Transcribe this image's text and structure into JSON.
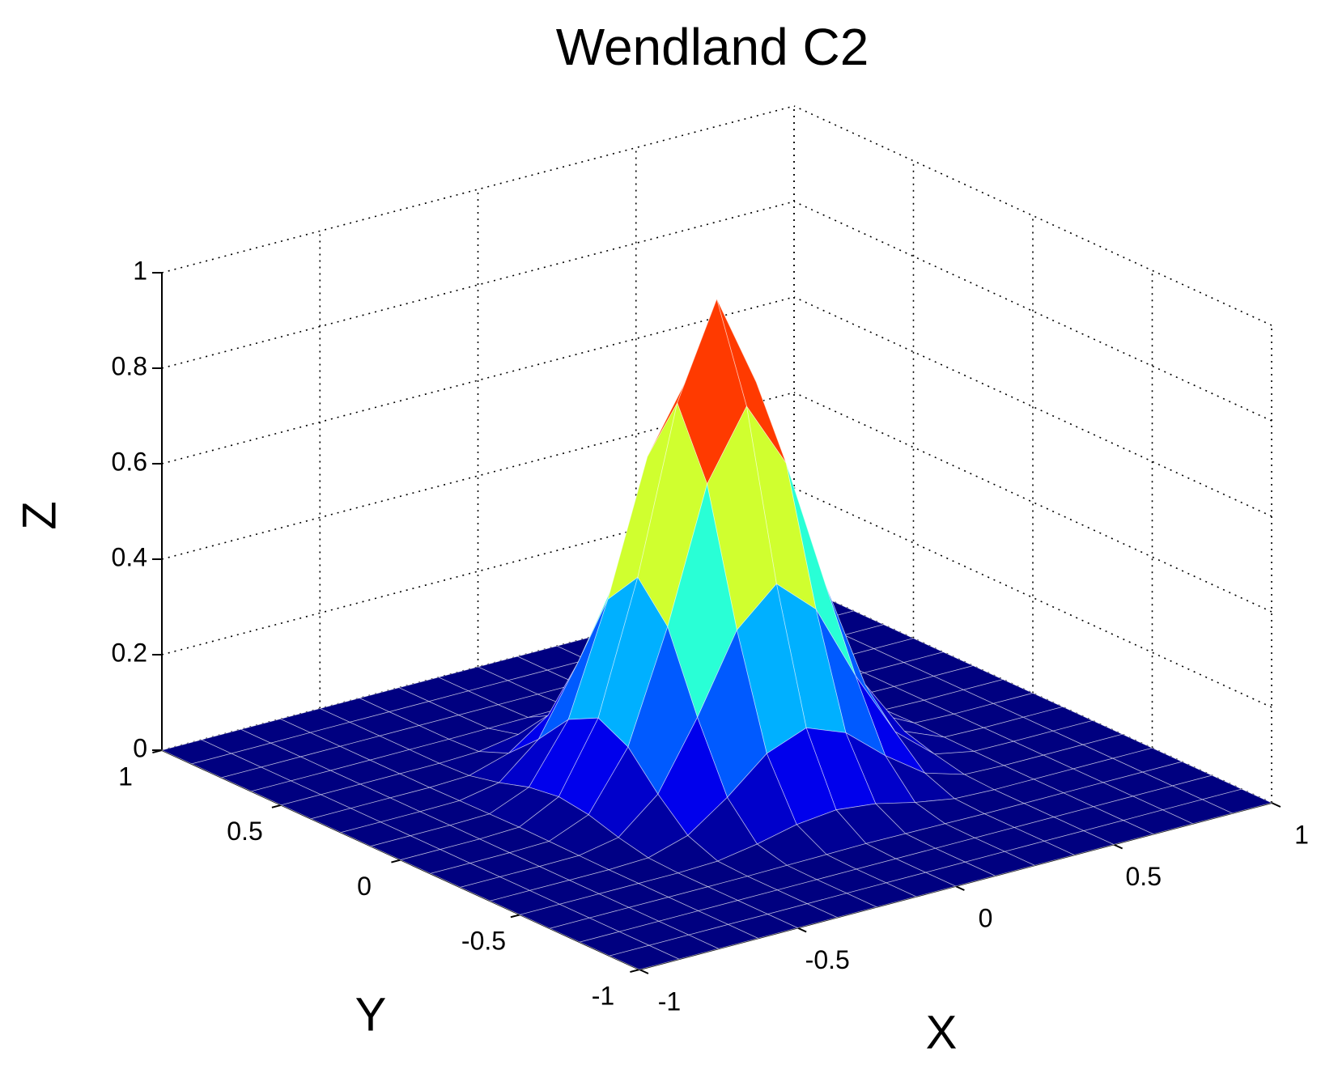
{
  "chart_data": {
    "type": "surface",
    "title": "Wendland C2",
    "xlabel": "X",
    "ylabel": "Y",
    "zlabel": "Z",
    "colormap": "jet",
    "grid": true,
    "x": [
      -1,
      -0.875,
      -0.75,
      -0.625,
      -0.5,
      -0.375,
      -0.25,
      -0.125,
      0,
      0.125,
      0.25,
      0.375,
      0.5,
      0.625,
      0.75,
      0.875,
      1
    ],
    "y": [
      -1,
      -0.875,
      -0.75,
      -0.625,
      -0.5,
      -0.375,
      -0.25,
      -0.125,
      0,
      0.125,
      0.25,
      0.375,
      0.5,
      0.625,
      0.75,
      0.875,
      1
    ],
    "z": [
      [
        0,
        0,
        0,
        0,
        0,
        0,
        0,
        0,
        0,
        0,
        0,
        0,
        0,
        0,
        0,
        0,
        0
      ],
      [
        0,
        0,
        0,
        0,
        0,
        0,
        0,
        0,
        0,
        0,
        0,
        0,
        0,
        0,
        0,
        0,
        0
      ],
      [
        0,
        0,
        0,
        0,
        0,
        0,
        0,
        0,
        0,
        0,
        0,
        0,
        0,
        0,
        0,
        0,
        0
      ],
      [
        0,
        0,
        0,
        0,
        0,
        0,
        0.001,
        0.002,
        0.003,
        0.002,
        0.001,
        0,
        0,
        0,
        0,
        0,
        0
      ],
      [
        0,
        0,
        0,
        0,
        0,
        0.003,
        0.017,
        0.036,
        0.045,
        0.036,
        0.017,
        0.003,
        0,
        0,
        0,
        0,
        0
      ],
      [
        0,
        0,
        0,
        0,
        0.003,
        0.028,
        0.086,
        0.156,
        0.188,
        0.156,
        0.086,
        0.028,
        0.003,
        0,
        0,
        0,
        0
      ],
      [
        0,
        0,
        0,
        0.001,
        0.017,
        0.086,
        0.225,
        0.386,
        0.461,
        0.386,
        0.225,
        0.086,
        0.017,
        0.001,
        0,
        0,
        0
      ],
      [
        0,
        0,
        0,
        0.002,
        0.036,
        0.156,
        0.386,
        0.663,
        0.804,
        0.663,
        0.386,
        0.156,
        0.036,
        0.002,
        0,
        0,
        0
      ],
      [
        0,
        0,
        0,
        0.003,
        0.045,
        0.188,
        0.461,
        0.804,
        1,
        0.804,
        0.461,
        0.188,
        0.045,
        0.003,
        0,
        0,
        0
      ],
      [
        0,
        0,
        0,
        0.002,
        0.036,
        0.156,
        0.386,
        0.663,
        0.804,
        0.663,
        0.386,
        0.156,
        0.036,
        0.002,
        0,
        0,
        0
      ],
      [
        0,
        0,
        0,
        0.001,
        0.017,
        0.086,
        0.225,
        0.386,
        0.461,
        0.386,
        0.225,
        0.086,
        0.017,
        0.001,
        0,
        0,
        0
      ],
      [
        0,
        0,
        0,
        0,
        0.003,
        0.028,
        0.086,
        0.156,
        0.188,
        0.156,
        0.086,
        0.028,
        0.003,
        0,
        0,
        0,
        0
      ],
      [
        0,
        0,
        0,
        0,
        0,
        0.003,
        0.017,
        0.036,
        0.045,
        0.036,
        0.017,
        0.003,
        0,
        0,
        0,
        0,
        0
      ],
      [
        0,
        0,
        0,
        0,
        0,
        0,
        0.001,
        0.002,
        0.003,
        0.002,
        0.001,
        0,
        0,
        0,
        0,
        0,
        0
      ],
      [
        0,
        0,
        0,
        0,
        0,
        0,
        0,
        0,
        0,
        0,
        0,
        0,
        0,
        0,
        0,
        0,
        0
      ],
      [
        0,
        0,
        0,
        0,
        0,
        0,
        0,
        0,
        0,
        0,
        0,
        0,
        0,
        0,
        0,
        0,
        0
      ],
      [
        0,
        0,
        0,
        0,
        0,
        0,
        0,
        0,
        0,
        0,
        0,
        0,
        0,
        0,
        0,
        0,
        0
      ]
    ],
    "xlim": [
      -1,
      1
    ],
    "ylim": [
      -1,
      1
    ],
    "zlim": [
      0,
      1
    ],
    "xticks": [
      -1,
      -0.5,
      0,
      0.5,
      1
    ],
    "yticks": [
      -1,
      -0.5,
      0,
      0.5,
      1
    ],
    "zticks": [
      0,
      0.2,
      0.4,
      0.6,
      0.8,
      1
    ]
  }
}
